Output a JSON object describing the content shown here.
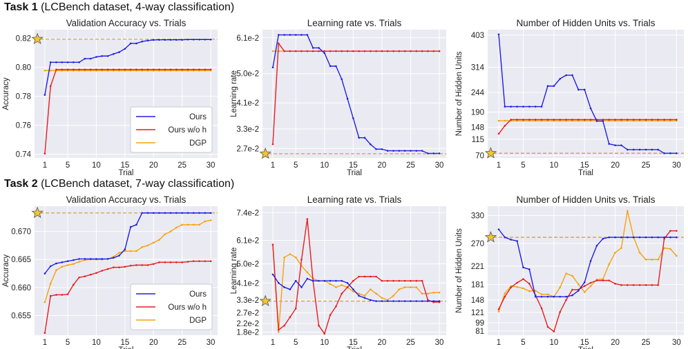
{
  "tasks": [
    {
      "label": "Task 1",
      "desc": "(LCBench dataset, 4-way classification)"
    },
    {
      "label": "Task 2",
      "desc": "(LCBench dataset, 7-way classification)"
    }
  ],
  "colors": {
    "ours": "#1f1fe0",
    "ours_wo_h": "#e81c1c",
    "dgp": "#f5a20a",
    "ref": "#caa24a",
    "star_fill": "#f2c531",
    "star_stroke": "#555555",
    "bg": "#eaeaf2",
    "grid": "#ffffff"
  },
  "chart_data": [
    {
      "type": "line",
      "title": "Validation Accuracy vs. Trials",
      "xlabel": "Trial",
      "ylabel": "Accuracy",
      "xlim": [
        -0.8,
        31.2
      ],
      "ylim": [
        0.7375,
        0.826
      ],
      "xticks": [
        1,
        5,
        10,
        15,
        20,
        25,
        30
      ],
      "yticks": [
        0.74,
        0.76,
        0.78,
        0.8,
        0.82
      ],
      "ytick_labels": [
        "0.74",
        "0.76",
        "0.78",
        "0.80",
        "0.82"
      ],
      "ref_line": 0.8195,
      "star": {
        "x": -0.3,
        "y": 0.8195
      },
      "legend": "bottom-right",
      "x": [
        1,
        2,
        3,
        4,
        5,
        6,
        7,
        8,
        9,
        10,
        11,
        12,
        13,
        14,
        15,
        16,
        17,
        18,
        19,
        20,
        21,
        22,
        23,
        24,
        25,
        26,
        27,
        28,
        29,
        30
      ],
      "series": [
        {
          "name": "Ours",
          "key": "ours",
          "values": [
            0.781,
            0.8035,
            0.8035,
            0.8035,
            0.8035,
            0.8035,
            0.8035,
            0.806,
            0.806,
            0.8072,
            0.8078,
            0.8078,
            0.8092,
            0.8105,
            0.8128,
            0.8165,
            0.8165,
            0.8178,
            0.8185,
            0.8189,
            0.819,
            0.819,
            0.819,
            0.819,
            0.819,
            0.8192,
            0.8192,
            0.8192,
            0.8192,
            0.8192
          ]
        },
        {
          "name": "Ours w/o h",
          "key": "ours_wo_h",
          "values": [
            0.7405,
            0.787,
            0.7985,
            0.7985,
            0.7985,
            0.7985,
            0.7985,
            0.7985,
            0.7985,
            0.7985,
            0.7985,
            0.7985,
            0.7985,
            0.7985,
            0.7985,
            0.7985,
            0.7985,
            0.7985,
            0.7985,
            0.7985,
            0.7985,
            0.7985,
            0.7985,
            0.7985,
            0.7985,
            0.7985,
            0.7985,
            0.7985,
            0.7985,
            0.7985
          ]
        },
        {
          "name": "DGP",
          "key": "dgp",
          "values": [
            0.7978,
            0.7978,
            0.7978,
            0.7978,
            0.7978,
            0.7978,
            0.7978,
            0.7978,
            0.7978,
            0.7978,
            0.7978,
            0.7978,
            0.7978,
            0.7978,
            0.7978,
            0.7978,
            0.7978,
            0.7978,
            0.7978,
            0.7978,
            0.7978,
            0.7978,
            0.7978,
            0.7978,
            0.7978,
            0.7978,
            0.7978,
            0.7978,
            0.7978,
            0.7978
          ]
        }
      ]
    },
    {
      "type": "line",
      "title": "Learning rate vs. Trials",
      "xlabel": "Trial",
      "ylabel": "Learning rate",
      "xlim": [
        -0.8,
        31.2
      ],
      "ylim": [
        0.0241,
        0.0635
      ],
      "xticks": [
        1,
        5,
        10,
        15,
        20,
        25,
        30
      ],
      "yticks": [
        0.027,
        0.033,
        0.041,
        0.05,
        0.061
      ],
      "ytick_labels": [
        "2.7e-2",
        "3.3e-2",
        "4.1e-2",
        "5.0e-2",
        "6.1e-2"
      ],
      "ref_line": 0.0254,
      "star": {
        "x": -0.3,
        "y": 0.0254
      },
      "x": [
        1,
        2,
        3,
        4,
        5,
        6,
        7,
        8,
        9,
        10,
        11,
        12,
        13,
        14,
        15,
        16,
        17,
        18,
        19,
        20,
        21,
        22,
        23,
        24,
        25,
        26,
        27,
        28,
        29,
        30
      ],
      "series": [
        {
          "name": "Ours",
          "key": "ours",
          "values": [
            0.0519,
            0.0619,
            0.0619,
            0.0619,
            0.0619,
            0.0619,
            0.0619,
            0.0579,
            0.0579,
            0.0563,
            0.0523,
            0.0523,
            0.0483,
            0.0423,
            0.0363,
            0.0303,
            0.0303,
            0.0283,
            0.0268,
            0.0268,
            0.0263,
            0.0263,
            0.0263,
            0.0263,
            0.0263,
            0.0263,
            0.0263,
            0.0255,
            0.0255,
            0.0255
          ]
        },
        {
          "name": "Ours w/o h",
          "key": "ours_wo_h",
          "values": [
            0.0283,
            0.0593,
            0.0569,
            0.0569,
            0.0569,
            0.0569,
            0.0569,
            0.0569,
            0.0569,
            0.0569,
            0.0569,
            0.0569,
            0.0569,
            0.0569,
            0.0569,
            0.0569,
            0.0569,
            0.0569,
            0.0569,
            0.0569,
            0.0569,
            0.0569,
            0.0569,
            0.0569,
            0.0569,
            0.0569,
            0.0569,
            0.0569,
            0.0569,
            0.0569
          ]
        },
        {
          "name": "DGP",
          "key": "dgp",
          "values": [
            0.0569,
            0.0569,
            0.0569,
            0.0569,
            0.0569,
            0.0569,
            0.0569,
            0.0569,
            0.0569,
            0.0569,
            0.0569,
            0.0569,
            0.0569,
            0.0569,
            0.0569,
            0.0569,
            0.0569,
            0.0569,
            0.0569,
            0.0569,
            0.0569,
            0.0569,
            0.0569,
            0.0569,
            0.0569,
            0.0569,
            0.0569,
            0.0569,
            0.0569,
            0.0569
          ]
        }
      ]
    },
    {
      "type": "line",
      "title": "Number of Hidden Units vs. Trials",
      "xlabel": "Trial",
      "ylabel": "Number of Hidden Units",
      "xlim": [
        -0.8,
        31.2
      ],
      "ylim": [
        63,
        418
      ],
      "xticks": [
        1,
        5,
        10,
        15,
        20,
        25,
        30
      ],
      "yticks": [
        70,
        115,
        148,
        190,
        244,
        314,
        403
      ],
      "ytick_labels": [
        "70",
        "115",
        "148",
        "190",
        "244",
        "314",
        "403"
      ],
      "ref_line": 76,
      "star": {
        "x": -0.3,
        "y": 76
      },
      "x": [
        1,
        2,
        3,
        4,
        5,
        6,
        7,
        8,
        9,
        10,
        11,
        12,
        13,
        14,
        15,
        16,
        17,
        18,
        19,
        20,
        21,
        22,
        23,
        24,
        25,
        26,
        27,
        28,
        29,
        30
      ],
      "series": [
        {
          "name": "Ours",
          "key": "ours",
          "values": [
            405,
            205,
            205,
            205,
            205,
            205,
            205,
            205,
            262,
            262,
            282,
            292,
            292,
            252,
            252,
            200,
            165,
            165,
            102,
            98,
            98,
            86,
            86,
            86,
            86,
            86,
            86,
            76,
            76,
            76
          ]
        },
        {
          "name": "Ours w/o h",
          "key": "ours_wo_h",
          "values": [
            130,
            152,
            169,
            169,
            169,
            169,
            169,
            169,
            169,
            169,
            169,
            169,
            169,
            169,
            169,
            169,
            169,
            169,
            169,
            169,
            169,
            169,
            169,
            169,
            169,
            169,
            169,
            169,
            169,
            169
          ]
        },
        {
          "name": "DGP",
          "key": "dgp",
          "values": [
            166,
            166,
            166,
            166,
            166,
            166,
            166,
            166,
            166,
            166,
            166,
            166,
            166,
            166,
            166,
            166,
            166,
            166,
            166,
            166,
            166,
            166,
            166,
            166,
            166,
            166,
            166,
            166,
            166,
            166
          ]
        }
      ]
    },
    {
      "type": "line",
      "title": "Validation Accuracy vs. Trials",
      "xlabel": "Trial",
      "ylabel": "Accuracy",
      "xlim": [
        -0.8,
        31.2
      ],
      "ylim": [
        0.6515,
        0.6745
      ],
      "xticks": [
        1,
        5,
        10,
        15,
        20,
        25,
        30
      ],
      "yticks": [
        0.655,
        0.66,
        0.665,
        0.67
      ],
      "ytick_labels": [
        "0.655",
        "0.660",
        "0.665",
        "0.670"
      ],
      "ref_line": 0.6733,
      "star": {
        "x": -0.3,
        "y": 0.6733
      },
      "legend": "bottom-right",
      "x": [
        1,
        2,
        3,
        4,
        5,
        6,
        7,
        8,
        9,
        10,
        11,
        12,
        13,
        14,
        15,
        16,
        17,
        18,
        19,
        20,
        21,
        22,
        23,
        24,
        25,
        26,
        27,
        28,
        29,
        30
      ],
      "series": [
        {
          "name": "Ours",
          "key": "ours",
          "values": [
            0.6625,
            0.6638,
            0.6643,
            0.6645,
            0.6647,
            0.6649,
            0.6651,
            0.6651,
            0.6651,
            0.6651,
            0.6651,
            0.6651,
            0.6653,
            0.6657,
            0.6668,
            0.6708,
            0.6712,
            0.6733,
            0.6733,
            0.6733,
            0.6733,
            0.6733,
            0.6733,
            0.6733,
            0.6733,
            0.6733,
            0.6733,
            0.6733,
            0.6733,
            0.6733
          ]
        },
        {
          "name": "Ours w/o h",
          "key": "ours_wo_h",
          "values": [
            0.6519,
            0.6585,
            0.6587,
            0.6587,
            0.6588,
            0.6605,
            0.6618,
            0.662,
            0.6623,
            0.6626,
            0.663,
            0.6633,
            0.6636,
            0.6636,
            0.6637,
            0.6639,
            0.664,
            0.664,
            0.664,
            0.6642,
            0.6645,
            0.6645,
            0.6645,
            0.6645,
            0.6645,
            0.6646,
            0.6647,
            0.6647,
            0.6647,
            0.6647
          ]
        },
        {
          "name": "DGP",
          "key": "dgp",
          "values": [
            0.6574,
            0.6607,
            0.6631,
            0.6637,
            0.664,
            0.6642,
            0.6646,
            0.6649,
            0.665,
            0.665,
            0.665,
            0.6651,
            0.6655,
            0.6662,
            0.6665,
            0.6665,
            0.6665,
            0.6672,
            0.6675,
            0.668,
            0.6685,
            0.6695,
            0.67,
            0.6707,
            0.6712,
            0.6712,
            0.6712,
            0.6712,
            0.6718,
            0.672
          ]
        }
      ]
    },
    {
      "type": "line",
      "title": "Learning rate vs. Trials",
      "xlabel": "Trial",
      "ylabel": "Learning rate",
      "xlim": [
        -0.8,
        31.2
      ],
      "ylim": [
        0.0165,
        0.077
      ],
      "xticks": [
        1,
        5,
        10,
        15,
        20,
        25,
        30
      ],
      "yticks": [
        0.018,
        0.022,
        0.027,
        0.033,
        0.041,
        0.05,
        0.061,
        0.074
      ],
      "ytick_labels": [
        "1.8e-2",
        "2.2e-2",
        "2.7e-2",
        "3.3e-2",
        "4.1e-2",
        "5.0e-2",
        "6.1e-2",
        "7.4e-2"
      ],
      "ref_line": 0.0325,
      "star": {
        "x": -0.3,
        "y": 0.0325
      },
      "x": [
        1,
        2,
        3,
        4,
        5,
        6,
        7,
        8,
        9,
        10,
        11,
        12,
        13,
        14,
        15,
        16,
        17,
        18,
        19,
        20,
        21,
        22,
        23,
        24,
        25,
        26,
        27,
        28,
        29,
        30
      ],
      "series": [
        {
          "name": "Ours",
          "key": "ours",
          "values": [
            0.045,
            0.041,
            0.039,
            0.038,
            0.042,
            0.039,
            0.043,
            0.042,
            0.042,
            0.042,
            0.042,
            0.042,
            0.042,
            0.041,
            0.038,
            0.035,
            0.034,
            0.033,
            0.0325,
            0.0325,
            0.0325,
            0.0325,
            0.0325,
            0.0325,
            0.0325,
            0.0325,
            0.0325,
            0.0325,
            0.0325,
            0.0325
          ]
        },
        {
          "name": "Ours w/o h",
          "key": "ours_wo_h",
          "values": [
            0.059,
            0.019,
            0.021,
            0.025,
            0.029,
            0.052,
            0.071,
            0.042,
            0.021,
            0.0172,
            0.026,
            0.03,
            0.036,
            0.039,
            0.042,
            0.044,
            0.044,
            0.044,
            0.044,
            0.042,
            0.042,
            0.042,
            0.042,
            0.042,
            0.042,
            0.042,
            0.042,
            0.033,
            0.032,
            0.032
          ]
        },
        {
          "name": "DGP",
          "key": "dgp",
          "values": [
            0.059,
            0.018,
            0.053,
            0.0545,
            0.053,
            0.049,
            0.046,
            0.043,
            0.042,
            0.042,
            0.0405,
            0.039,
            0.04,
            0.039,
            0.037,
            0.036,
            0.035,
            0.038,
            0.036,
            0.034,
            0.033,
            0.035,
            0.038,
            0.039,
            0.039,
            0.039,
            0.036,
            0.036,
            0.0365,
            0.0365
          ]
        }
      ]
    },
    {
      "type": "line",
      "title": "Number of Hidden Units vs. Trials",
      "xlabel": "Trial",
      "ylabel": "Number of Hidden Units",
      "xlim": [
        -0.8,
        31.2
      ],
      "ylim": [
        72,
        350
      ],
      "xticks": [
        1,
        5,
        10,
        15,
        20,
        25,
        30
      ],
      "yticks": [
        81,
        99,
        121,
        148,
        181,
        221,
        270,
        330
      ],
      "ytick_labels": [
        "81",
        "99",
        "121",
        "148",
        "181",
        "221",
        "270",
        "330"
      ],
      "ref_line": 283,
      "star": {
        "x": -0.3,
        "y": 283
      },
      "x": [
        1,
        2,
        3,
        4,
        5,
        6,
        7,
        8,
        9,
        10,
        11,
        12,
        13,
        14,
        15,
        16,
        17,
        18,
        19,
        20,
        21,
        22,
        23,
        24,
        25,
        26,
        27,
        28,
        29,
        30
      ],
      "series": [
        {
          "name": "Ours",
          "key": "ours",
          "values": [
            300,
            283,
            278,
            275,
            218,
            214,
            155,
            155,
            155,
            155,
            155,
            155,
            158,
            168,
            186,
            232,
            265,
            280,
            283,
            283,
            283,
            283,
            283,
            283,
            283,
            283,
            283,
            283,
            283,
            283
          ]
        },
        {
          "name": "Ours w/o h",
          "key": "ours_wo_h",
          "values": [
            128,
            155,
            175,
            185,
            193,
            183,
            158,
            130,
            90,
            80,
            122,
            148,
            170,
            170,
            178,
            185,
            190,
            190,
            190,
            183,
            180,
            180,
            180,
            180,
            180,
            180,
            180,
            280,
            297,
            297
          ]
        },
        {
          "name": "DGP",
          "key": "dgp",
          "values": [
            123,
            162,
            178,
            176,
            173,
            167,
            168,
            160,
            160,
            155,
            175,
            205,
            200,
            182,
            165,
            178,
            192,
            193,
            225,
            250,
            260,
            340,
            283,
            250,
            235,
            235,
            235,
            260,
            258,
            243
          ]
        }
      ]
    }
  ]
}
